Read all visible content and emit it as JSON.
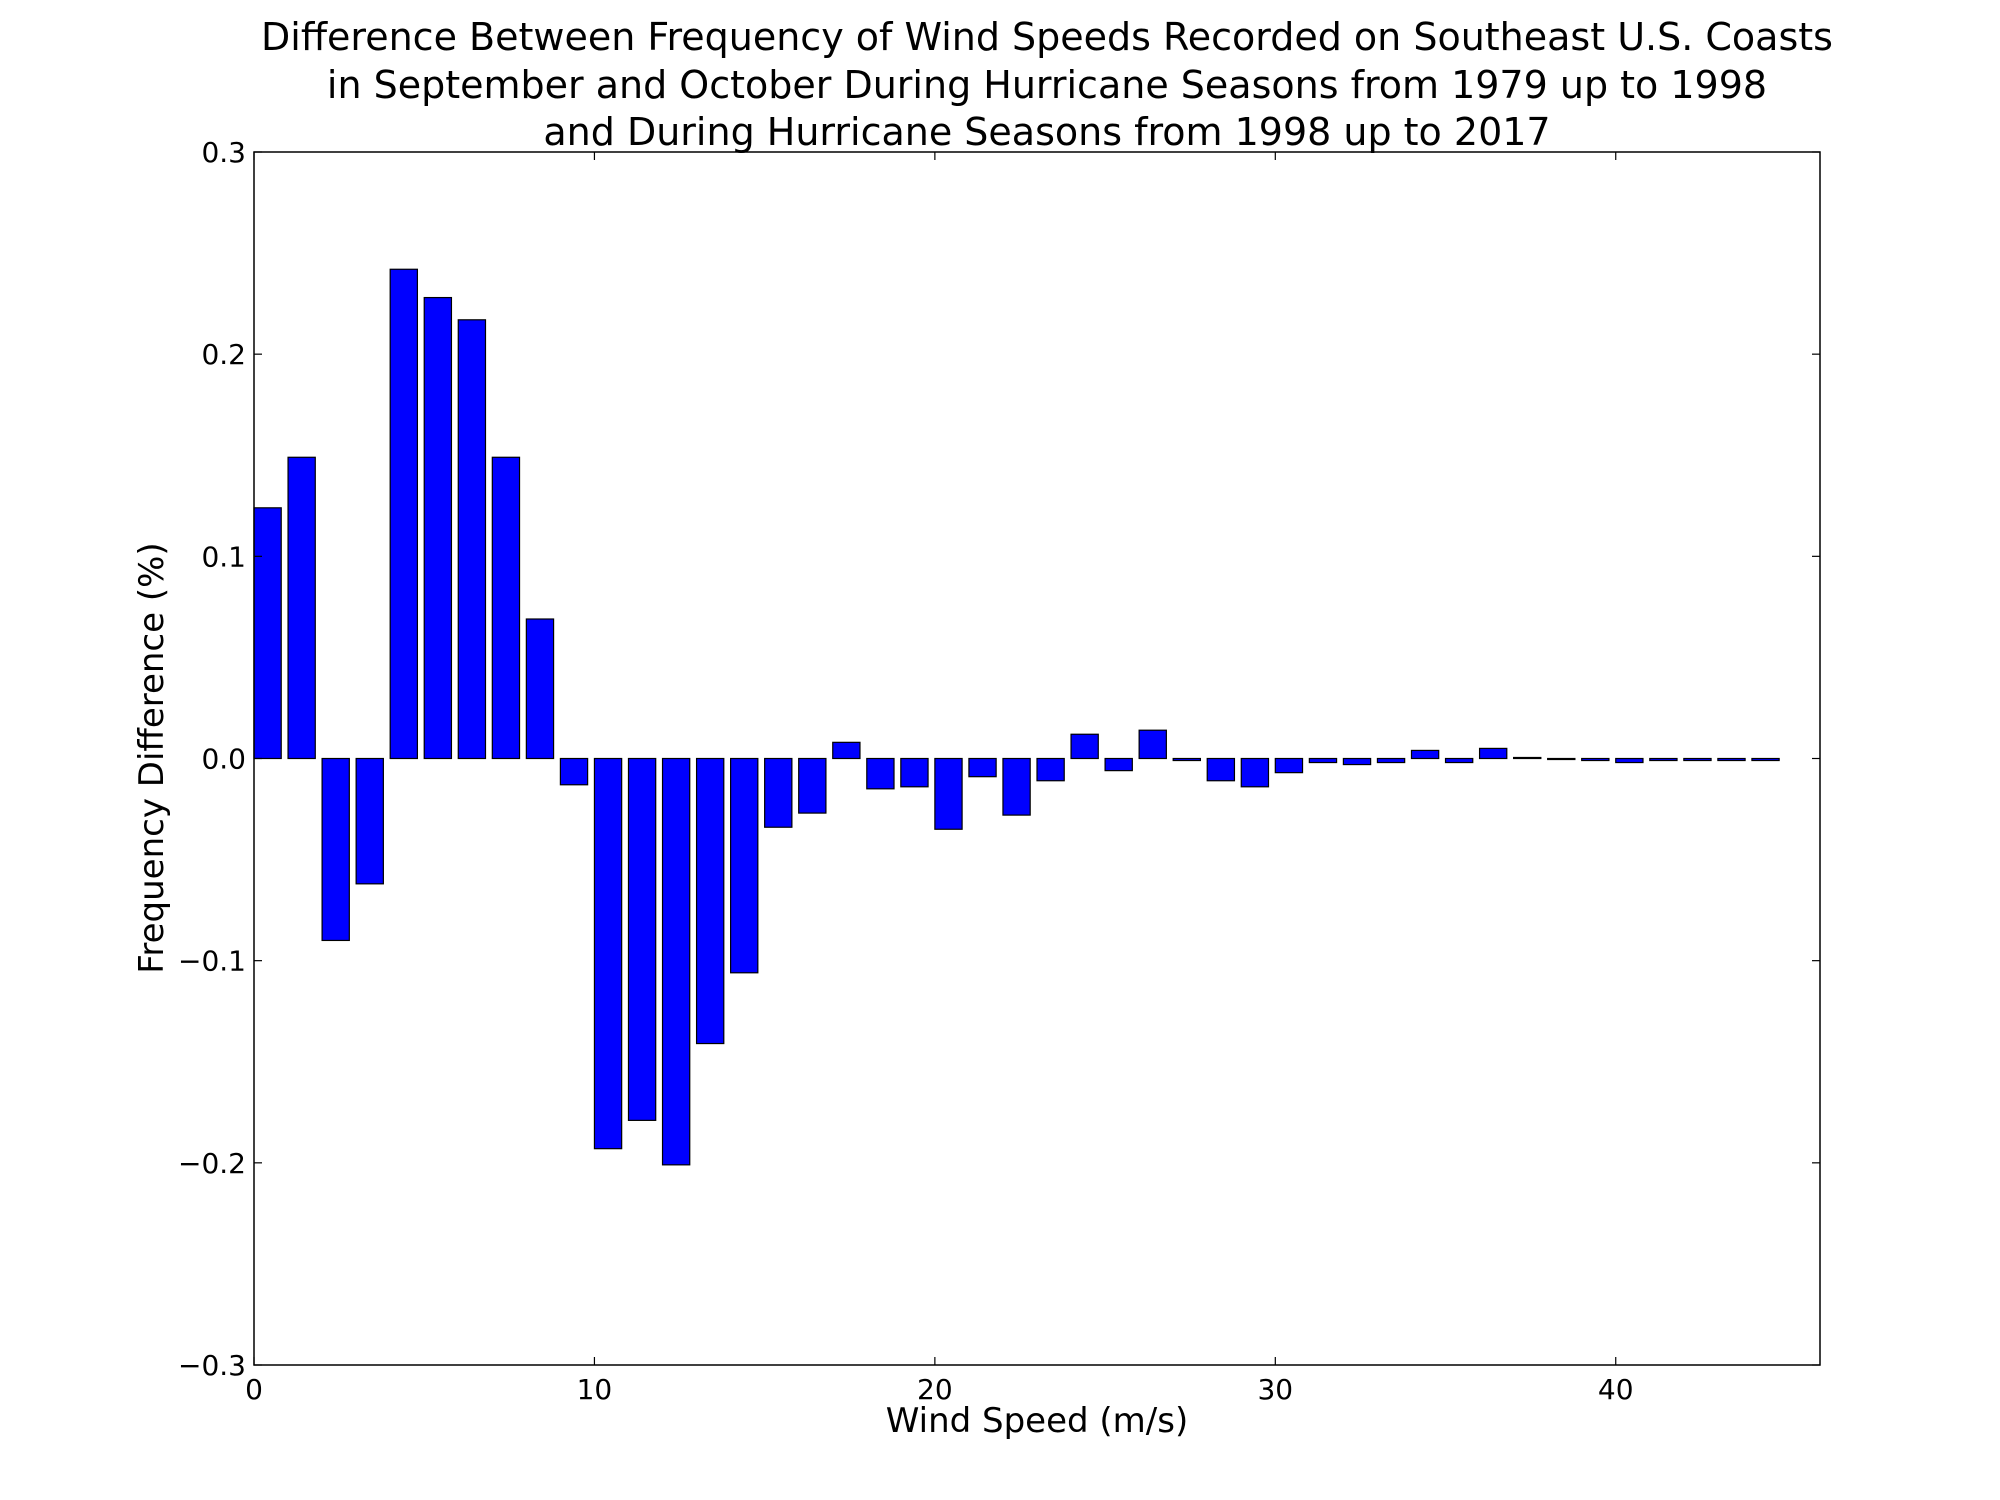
{
  "chart_data": {
    "type": "bar",
    "title_lines": [
      "Difference Between Frequency of Wind Speeds Recorded on Southeast U.S. Coasts",
      "in September and October During Hurricane Seasons from 1979 up to 1998",
      "and During Hurricane Seasons from 1998 up to 2017"
    ],
    "xlabel": "Wind Speed (m/s)",
    "ylabel": "Frequency Difference (%)",
    "xlim": [
      0,
      46
    ],
    "ylim": [
      -0.3,
      0.3
    ],
    "xticks": [
      0,
      10,
      20,
      30,
      40
    ],
    "yticks": [
      -0.3,
      -0.2,
      -0.1,
      0.0,
      0.1,
      0.2,
      0.3
    ],
    "ytick_labels": [
      "−0.3",
      "−0.2",
      "−0.1",
      "0.0",
      "0.1",
      "0.2",
      "0.3"
    ],
    "xtick_labels": [
      "0",
      "10",
      "20",
      "30",
      "40"
    ],
    "bar_width": 0.8,
    "bar_color": "#0000ff",
    "edge_color": "#000000",
    "grid": false,
    "x": [
      0,
      1,
      2,
      3,
      4,
      5,
      6,
      7,
      8,
      9,
      10,
      11,
      12,
      13,
      14,
      15,
      16,
      17,
      18,
      19,
      20,
      21,
      22,
      23,
      24,
      25,
      26,
      27,
      28,
      29,
      30,
      31,
      32,
      33,
      34,
      35,
      36,
      37,
      38,
      39,
      40,
      41,
      42,
      43,
      44
    ],
    "values": [
      0.124,
      0.149,
      -0.09,
      -0.062,
      0.242,
      0.228,
      0.217,
      0.149,
      0.069,
      -0.013,
      -0.193,
      -0.179,
      -0.201,
      -0.141,
      -0.106,
      -0.034,
      -0.027,
      0.008,
      -0.015,
      -0.014,
      -0.035,
      -0.009,
      -0.028,
      -0.011,
      0.012,
      -0.006,
      0.014,
      -0.001,
      -0.011,
      -0.014,
      -0.007,
      -0.002,
      -0.003,
      -0.002,
      0.004,
      -0.002,
      0.005,
      0.0005,
      -0.0005,
      -0.001,
      -0.002,
      -0.001,
      -0.001,
      -0.001,
      -0.001
    ]
  }
}
